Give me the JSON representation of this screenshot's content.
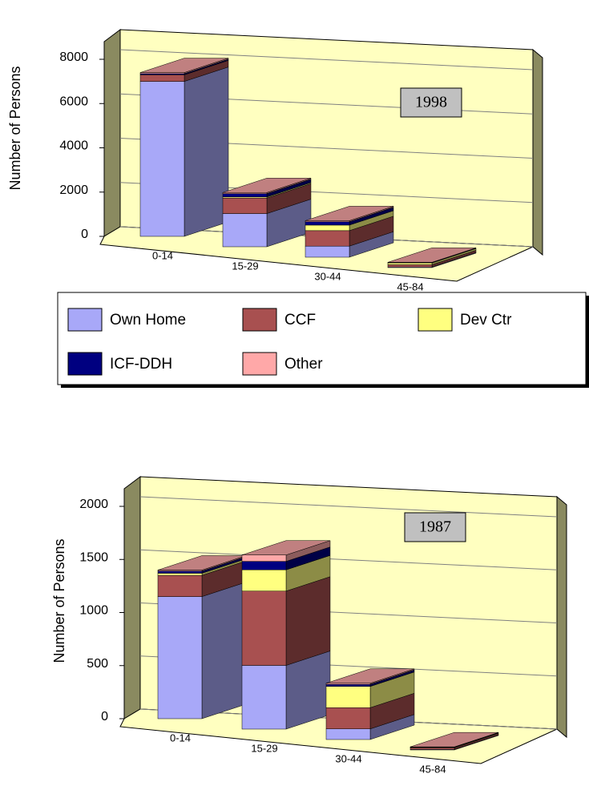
{
  "chart_data": [
    {
      "type": "bar3d",
      "annotation": "1998",
      "y_label": "Number of Persons",
      "categories": [
        "0-14",
        "15-29",
        "30-44",
        "45-84"
      ],
      "series": [
        {
          "name": "Own Home",
          "color": "#a8a8f8",
          "values": [
            7000,
            1500,
            500,
            30
          ]
        },
        {
          "name": "CCF",
          "color": "#a85050",
          "values": [
            300,
            700,
            700,
            100
          ]
        },
        {
          "name": "Dev Ctr",
          "color": "#ffff80",
          "values": [
            0,
            50,
            250,
            80
          ]
        },
        {
          "name": "ICF-DDH",
          "color": "#000080",
          "values": [
            50,
            150,
            150,
            20
          ]
        },
        {
          "name": "Other",
          "color": "#ffa8a8",
          "values": [
            50,
            50,
            50,
            10
          ]
        }
      ],
      "ylim": [
        0,
        8000
      ],
      "yticks": [
        0,
        2000,
        4000,
        6000,
        8000
      ],
      "grid": true
    },
    {
      "type": "bar3d",
      "annotation": "1987",
      "y_label": "Number of Persons",
      "categories": [
        "0-14",
        "15-29",
        "30-44",
        "45-84"
      ],
      "series": [
        {
          "color": "#a8a8f8",
          "values": [
            1150,
            600,
            100,
            5
          ]
        },
        {
          "color": "#a85050",
          "values": [
            200,
            700,
            200,
            15
          ]
        },
        {
          "color": "#ffff80",
          "values": [
            20,
            200,
            200,
            5
          ]
        },
        {
          "color": "#000080",
          "values": [
            20,
            80,
            20,
            2
          ]
        },
        {
          "color": "#ffa8a8",
          "values": [
            10,
            60,
            10,
            2
          ]
        }
      ],
      "ylim": [
        0,
        2000
      ],
      "yticks": [
        0,
        500,
        1000,
        1500,
        2000
      ],
      "grid": true
    }
  ]
}
